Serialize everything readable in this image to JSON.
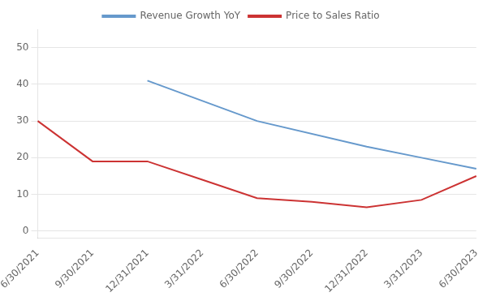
{
  "chart_data": {
    "type": "line",
    "categories": [
      "6/30/2021",
      "9/30/2021",
      "12/31/2021",
      "3/31/2022",
      "6/30/2022",
      "9/30/2022",
      "12/31/2022",
      "3/31/2023",
      "6/30/2023"
    ],
    "series": [
      {
        "name": "Revenue Growth YoY",
        "color": "#6699cc",
        "values": [
          null,
          null,
          41,
          null,
          30,
          null,
          23,
          20,
          17
        ]
      },
      {
        "name": "Price to Sales Ratio",
        "color": "#cc3333",
        "values": [
          30,
          19,
          19,
          14,
          9,
          8,
          6.5,
          8.5,
          15
        ]
      }
    ],
    "ylim": [
      -2,
      55
    ],
    "yticks": [
      0,
      10,
      20,
      30,
      40,
      50
    ],
    "grid": true,
    "legend": "top"
  }
}
